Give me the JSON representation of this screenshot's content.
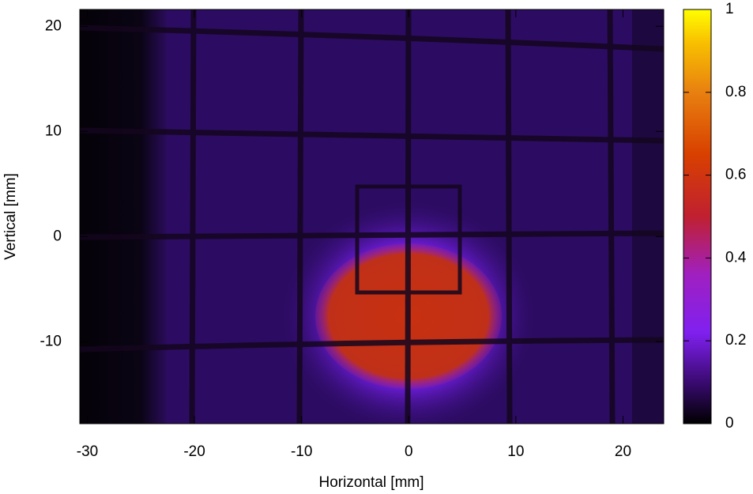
{
  "chart_data": {
    "type": "heatmap",
    "xlabel": "Horizontal [mm]",
    "ylabel": "Vertical [mm]",
    "xlim": [
      -30.7,
      23.8
    ],
    "ylim": [
      -17.8,
      21.6
    ],
    "xticks": [
      -30,
      -20,
      -10,
      0,
      10,
      20
    ],
    "yticks": [
      -10,
      0,
      10,
      20
    ],
    "colorbar": {
      "lim": [
        0,
        1
      ],
      "ticks": [
        0,
        0.2,
        0.4,
        0.6,
        0.8,
        1
      ]
    }
  }
}
